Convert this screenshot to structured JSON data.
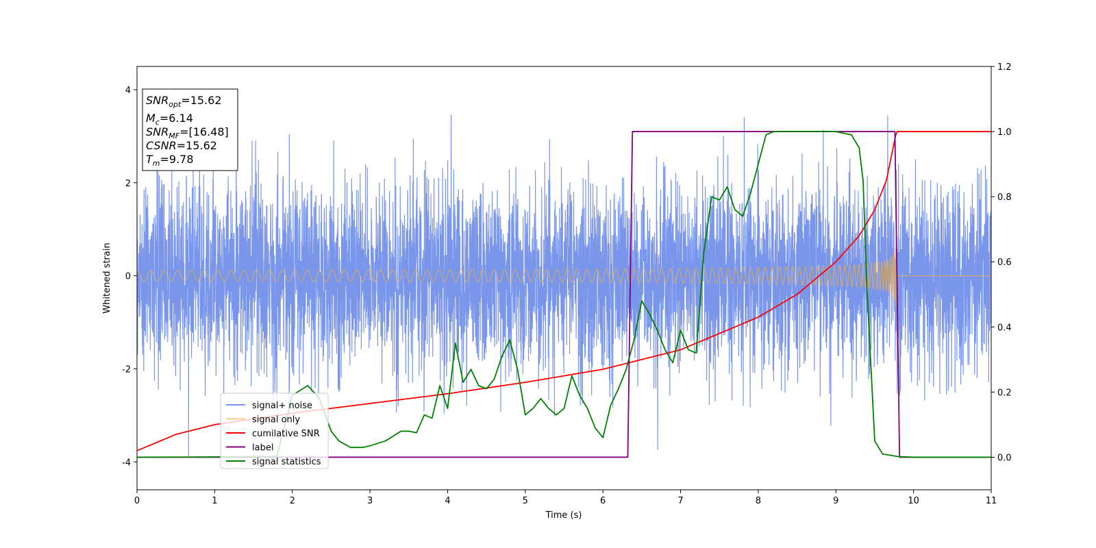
{
  "chart_data": {
    "type": "line",
    "xlabel": "Time (s)",
    "ylabel": "Whitened strain",
    "xlim": [
      0,
      11
    ],
    "ylim_left": [
      -4.6,
      4.5
    ],
    "ylim_right": [
      -0.1,
      1.2
    ],
    "x_ticks": [
      0,
      1,
      2,
      3,
      4,
      5,
      6,
      7,
      8,
      9,
      10,
      11
    ],
    "y_ticks_left": [
      -4,
      -2,
      0,
      2,
      4
    ],
    "y_ticks_right": [
      0.0,
      0.2,
      0.4,
      0.6,
      0.8,
      1.0,
      1.2
    ],
    "info_box": {
      "snr_opt": {
        "label": "SNR",
        "sub": "opt",
        "value": "=15.62"
      },
      "mc": {
        "label": "M",
        "sub": "c",
        "value": "=6.14"
      },
      "snr_mf": {
        "label": "SNR",
        "sub": "MF",
        "value": "=[16.48]"
      },
      "csnr": {
        "label": "CSNR",
        "value": "=15.62"
      },
      "tm": {
        "label": "T",
        "sub": "m",
        "value": "=9.78"
      }
    },
    "legend_position": "lower-left",
    "series": [
      {
        "name": "signal+ noise",
        "axis": "left",
        "color": "#4169e1",
        "description_values": {
          "sigma": 1.0,
          "t_end": 11
        }
      },
      {
        "name": "signal only",
        "axis": "left",
        "color": "#f5b041",
        "chirp": {
          "t_merger": 9.78,
          "amp_start": 0.12,
          "amp_end": 1.1
        }
      },
      {
        "name": "cumilative SNR",
        "axis": "right",
        "color": "#ff0000",
        "x": [
          0,
          0.5,
          1,
          2,
          3,
          4,
          5,
          6,
          7,
          8,
          8.5,
          9,
          9.3,
          9.5,
          9.65,
          9.78,
          11
        ],
        "y": [
          0.02,
          0.07,
          0.1,
          0.135,
          0.165,
          0.195,
          0.23,
          0.27,
          0.33,
          0.43,
          0.5,
          0.6,
          0.68,
          0.76,
          0.85,
          1.0,
          1.0
        ]
      },
      {
        "name": "label",
        "axis": "right",
        "color": "#800080",
        "x": [
          0,
          6.32,
          6.38,
          9.76,
          9.82,
          11
        ],
        "y": [
          0.0,
          0.0,
          1.0,
          1.0,
          0.0,
          0.0
        ]
      },
      {
        "name": "signal statistics",
        "axis": "right",
        "color": "#008000",
        "x": [
          0,
          1,
          1.8,
          2.0,
          2.2,
          2.35,
          2.5,
          2.6,
          2.75,
          2.9,
          3.0,
          3.2,
          3.4,
          3.5,
          3.6,
          3.7,
          3.8,
          3.9,
          4.0,
          4.1,
          4.2,
          4.3,
          4.4,
          4.5,
          4.6,
          4.7,
          4.8,
          4.9,
          5.0,
          5.1,
          5.2,
          5.3,
          5.4,
          5.5,
          5.6,
          5.7,
          5.8,
          5.9,
          6.0,
          6.1,
          6.2,
          6.3,
          6.4,
          6.5,
          6.6,
          6.7,
          6.8,
          6.9,
          7.0,
          7.1,
          7.2,
          7.3,
          7.4,
          7.5,
          7.6,
          7.7,
          7.8,
          7.9,
          8.0,
          8.1,
          8.2,
          8.3,
          8.5,
          8.7,
          9.0,
          9.2,
          9.3,
          9.35,
          9.4,
          9.5,
          9.6,
          9.8,
          10.0,
          11.0
        ],
        "y": [
          0.0,
          0.001,
          0.002,
          0.19,
          0.22,
          0.18,
          0.08,
          0.05,
          0.03,
          0.03,
          0.035,
          0.05,
          0.08,
          0.08,
          0.075,
          0.13,
          0.12,
          0.22,
          0.15,
          0.35,
          0.23,
          0.27,
          0.22,
          0.21,
          0.24,
          0.31,
          0.36,
          0.27,
          0.13,
          0.15,
          0.18,
          0.15,
          0.13,
          0.15,
          0.25,
          0.19,
          0.15,
          0.09,
          0.06,
          0.16,
          0.21,
          0.27,
          0.36,
          0.48,
          0.44,
          0.39,
          0.33,
          0.29,
          0.39,
          0.33,
          0.32,
          0.63,
          0.8,
          0.79,
          0.83,
          0.76,
          0.74,
          0.81,
          0.9,
          0.99,
          1.0,
          1.0,
          1.0,
          1.0,
          1.0,
          0.99,
          0.95,
          0.85,
          0.52,
          0.05,
          0.01,
          0.002,
          0.0,
          0.0
        ]
      }
    ]
  }
}
